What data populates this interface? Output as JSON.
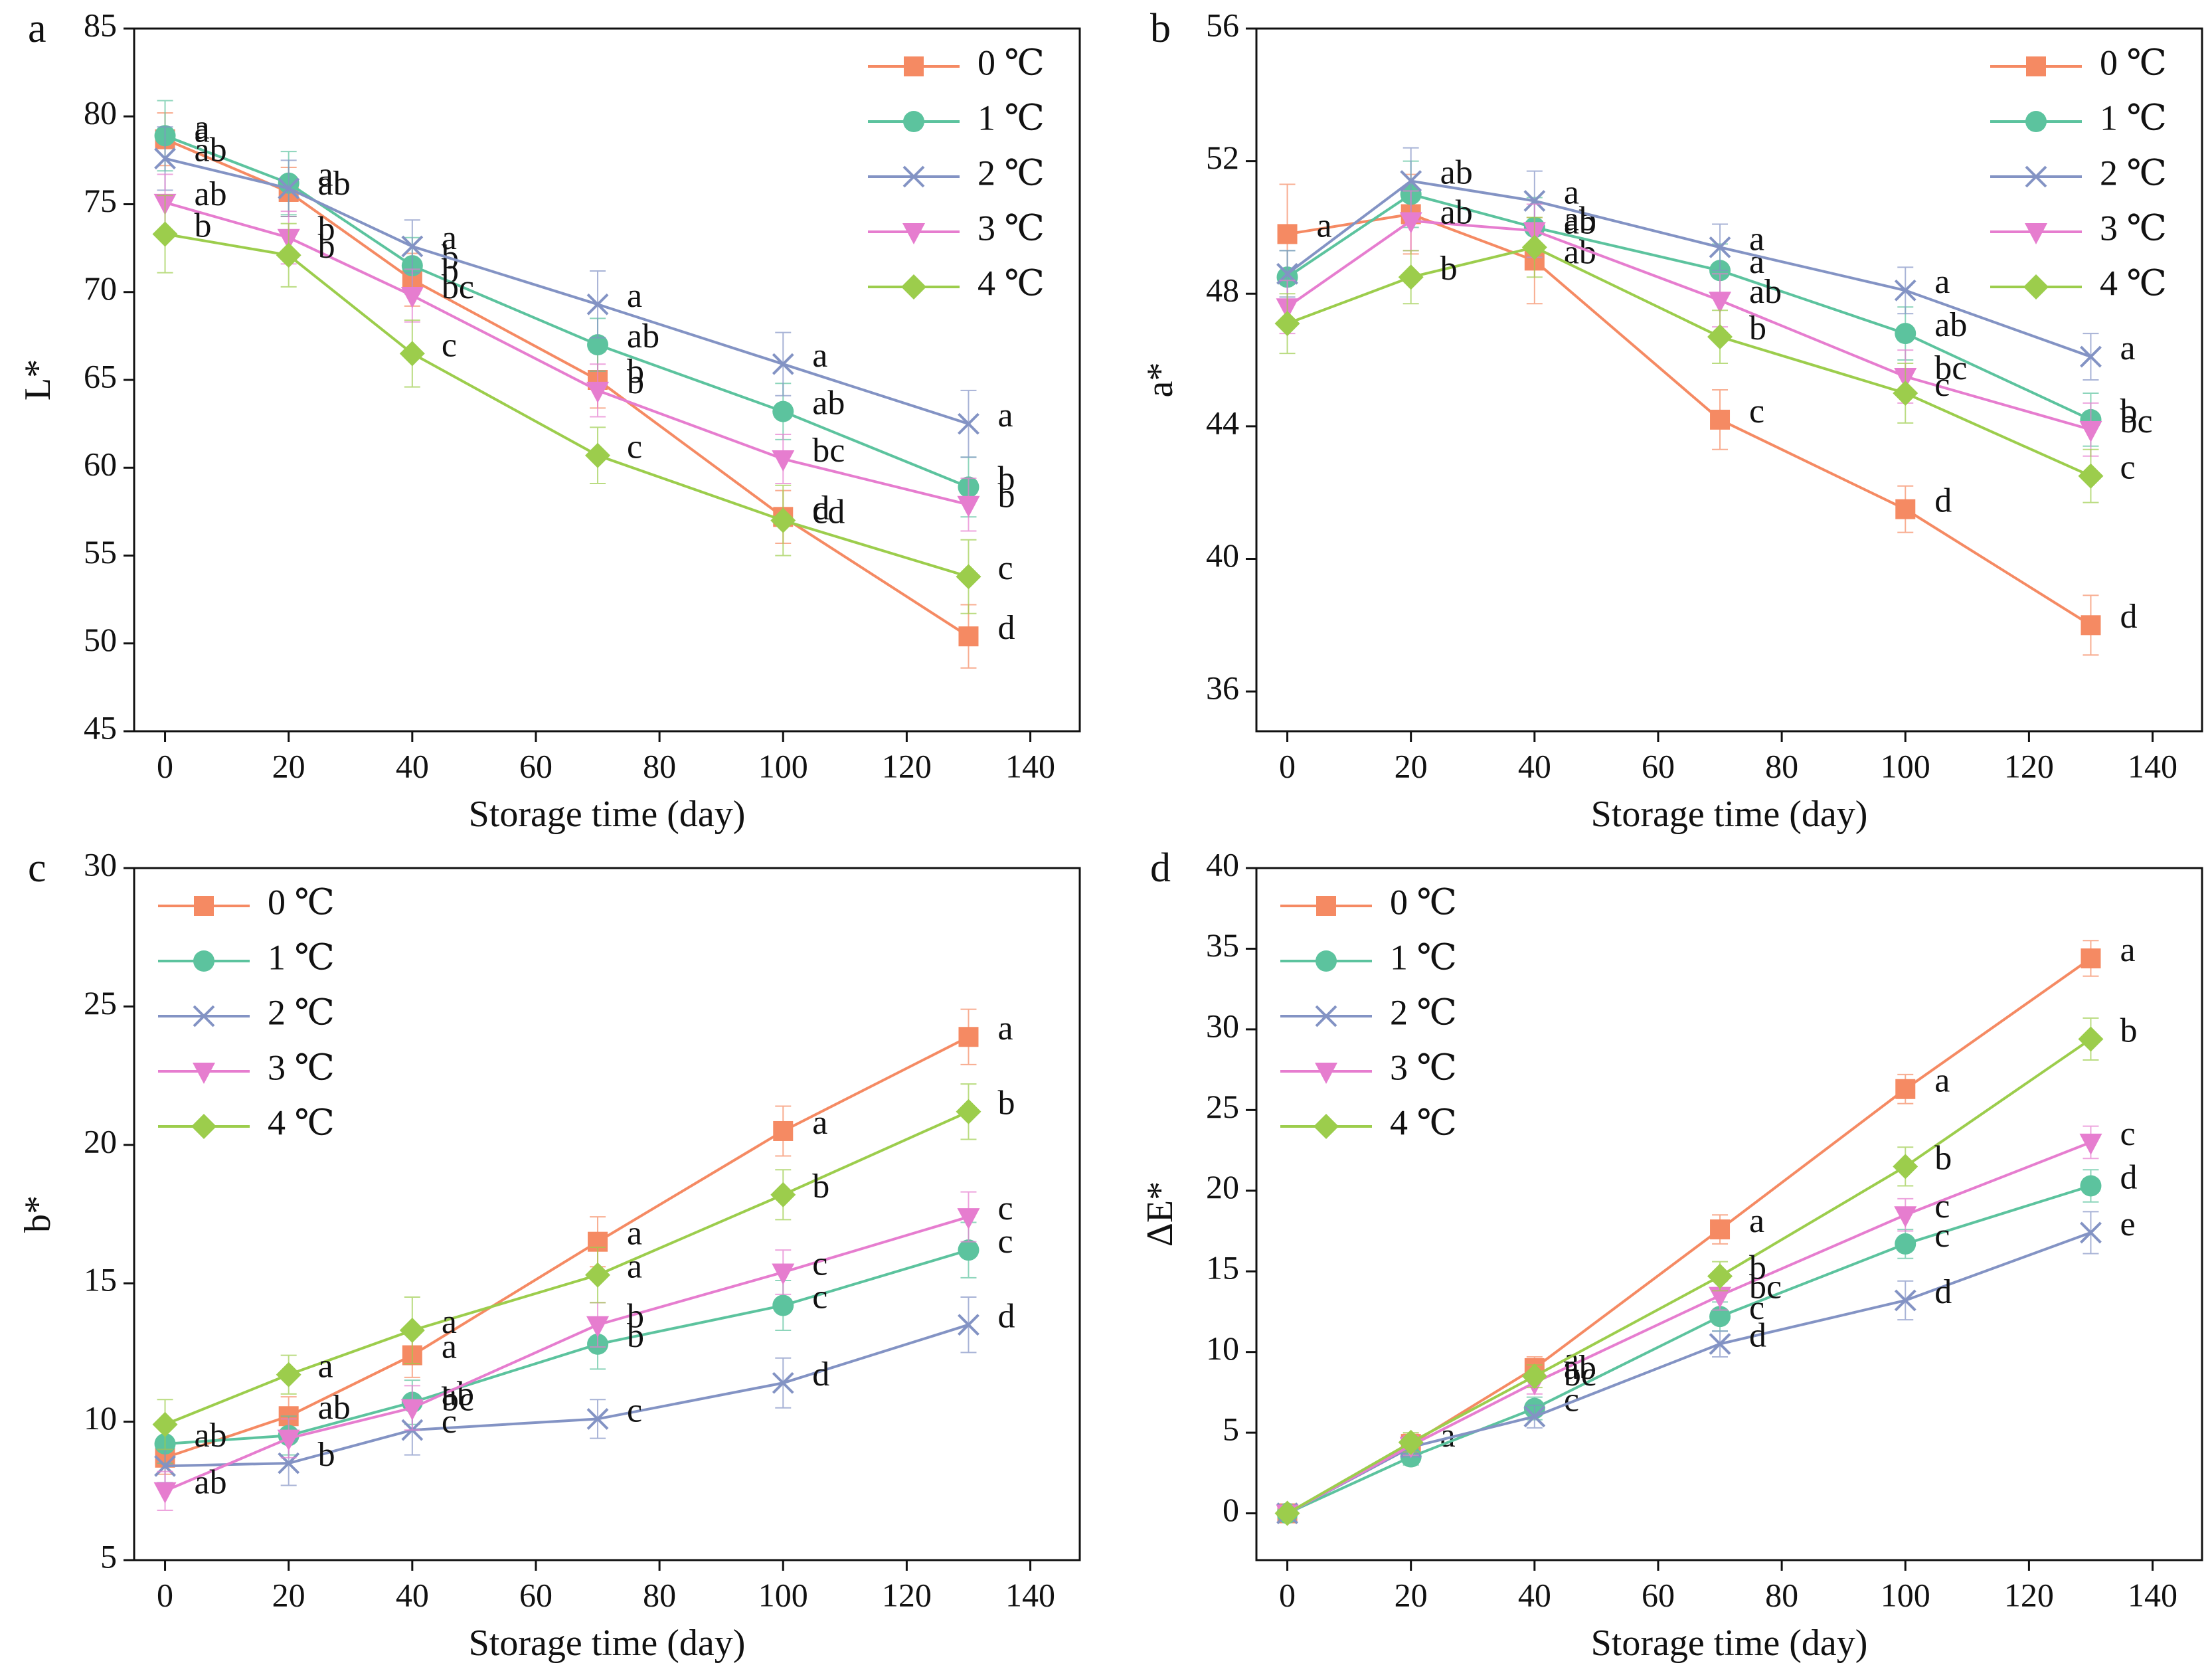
{
  "chart_data": [
    {
      "type": "line",
      "panel_label": "a",
      "ylabel": "L*",
      "xlabel": "Storage time (day)",
      "legend": "upper right",
      "x": [
        0,
        20,
        40,
        70,
        100,
        130
      ],
      "xlim": [
        -5,
        148
      ],
      "xticks": [
        0,
        20,
        40,
        60,
        80,
        100,
        120,
        140
      ],
      "ylim": [
        45,
        85
      ],
      "yticks": [
        45,
        50,
        55,
        60,
        65,
        70,
        75,
        80,
        85
      ],
      "series": [
        {
          "name": "0 ℃",
          "color": "#f58a63",
          "marker": "square",
          "values": [
            78.7,
            75.7,
            70.7,
            65.0,
            57.2,
            50.4
          ],
          "errors": [
            1.5,
            1.4,
            1.5,
            1.6,
            1.5,
            1.8
          ],
          "letters": [
            "a",
            "ab",
            "b",
            "b",
            "d",
            "d"
          ]
        },
        {
          "name": "1 ℃",
          "color": "#5cc39e",
          "marker": "circle",
          "values": [
            78.9,
            76.2,
            71.5,
            67.0,
            63.2,
            58.9
          ],
          "errors": [
            2.0,
            1.8,
            1.6,
            1.5,
            1.6,
            1.7
          ],
          "letters": [
            "a",
            "a",
            "b",
            "ab",
            "ab",
            "b"
          ]
        },
        {
          "name": "2 ℃",
          "color": "#8393c4",
          "marker": "x",
          "values": [
            77.6,
            75.9,
            72.6,
            69.3,
            65.9,
            62.5
          ],
          "errors": [
            1.8,
            1.6,
            1.5,
            1.9,
            1.8,
            1.9
          ],
          "letters": [
            "ab",
            null,
            "a",
            "a",
            "a",
            "a"
          ]
        },
        {
          "name": "3 ℃",
          "color": "#e67dcf",
          "marker": "triangle",
          "values": [
            75.1,
            73.1,
            69.8,
            64.4,
            60.5,
            57.9
          ],
          "errors": [
            1.6,
            1.5,
            1.5,
            1.5,
            1.4,
            1.5
          ],
          "letters": [
            "ab",
            "b",
            "bc",
            "b",
            "bc",
            "b"
          ]
        },
        {
          "name": "4 ℃",
          "color": "#9ccd4c",
          "marker": "diamond",
          "values": [
            73.3,
            72.1,
            66.5,
            60.7,
            57.0,
            53.8
          ],
          "errors": [
            2.2,
            1.8,
            1.9,
            1.6,
            2.0,
            2.1
          ],
          "letters": [
            "b",
            "b",
            "c",
            "c",
            "cd",
            "c"
          ]
        }
      ]
    },
    {
      "type": "line",
      "panel_label": "b",
      "ylabel": "a*",
      "xlabel": "Storage time (day)",
      "legend": "upper right",
      "x": [
        0,
        20,
        40,
        70,
        100,
        130
      ],
      "xlim": [
        -5,
        148
      ],
      "xticks": [
        0,
        20,
        40,
        60,
        80,
        100,
        120,
        140
      ],
      "ylim": [
        34.8,
        56
      ],
      "yticks": [
        36,
        40,
        44,
        48,
        52,
        56
      ],
      "series": [
        {
          "name": "0 ℃",
          "color": "#f58a63",
          "marker": "square",
          "values": [
            49.8,
            50.4,
            49.0,
            44.2,
            41.5,
            38.0
          ],
          "errors": [
            1.5,
            1.2,
            1.3,
            0.9,
            0.7,
            0.9
          ],
          "letters": [
            "a",
            null,
            "ab",
            "c",
            "d",
            "d"
          ]
        },
        {
          "name": "1 ℃",
          "color": "#5cc39e",
          "marker": "circle",
          "values": [
            48.5,
            51.0,
            50.0,
            48.7,
            46.8,
            44.2
          ],
          "errors": [
            0.8,
            1.0,
            0.9,
            0.8,
            0.8,
            0.8
          ],
          "letters": [
            null,
            null,
            "ab",
            "a",
            "ab",
            "b"
          ]
        },
        {
          "name": "2 ℃",
          "color": "#8393c4",
          "marker": "x",
          "values": [
            48.6,
            51.4,
            50.8,
            49.4,
            48.1,
            46.1
          ],
          "errors": [
            0.7,
            1.0,
            0.9,
            0.7,
            0.7,
            0.7
          ],
          "letters": [
            null,
            "ab",
            "a",
            "a",
            "a",
            "a"
          ]
        },
        {
          "name": "3 ℃",
          "color": "#e67dcf",
          "marker": "triangle",
          "values": [
            47.6,
            50.2,
            49.9,
            47.8,
            45.5,
            43.9
          ],
          "errors": [
            0.8,
            0.9,
            0.8,
            0.8,
            0.8,
            0.8
          ],
          "letters": [
            null,
            "ab",
            "ab",
            "ab",
            "bc",
            "bc"
          ]
        },
        {
          "name": "4 ℃",
          "color": "#9ccd4c",
          "marker": "diamond",
          "values": [
            47.1,
            48.5,
            49.4,
            46.7,
            45.0,
            42.5
          ],
          "errors": [
            0.9,
            0.8,
            0.9,
            0.8,
            0.9,
            0.8
          ],
          "letters": [
            null,
            "b",
            null,
            "b",
            "c",
            "c"
          ]
        }
      ]
    },
    {
      "type": "line",
      "panel_label": "c",
      "ylabel": "b*",
      "xlabel": "Storage time (day)",
      "legend": "upper left",
      "x": [
        0,
        20,
        40,
        70,
        100,
        130
      ],
      "xlim": [
        -5,
        148
      ],
      "xticks": [
        0,
        20,
        40,
        60,
        80,
        100,
        120,
        140
      ],
      "ylim": [
        5,
        30
      ],
      "yticks": [
        5,
        10,
        15,
        20,
        25,
        30
      ],
      "series": [
        {
          "name": "0 ℃",
          "color": "#f58a63",
          "marker": "square",
          "values": [
            8.7,
            10.2,
            12.4,
            16.5,
            20.5,
            23.9
          ],
          "errors": [
            0.6,
            0.7,
            0.8,
            0.9,
            0.9,
            1.0
          ],
          "letters": [
            null,
            "ab",
            "a",
            "a",
            "a",
            "a"
          ]
        },
        {
          "name": "1 ℃",
          "color": "#5cc39e",
          "marker": "circle",
          "values": [
            9.2,
            9.5,
            10.7,
            12.8,
            14.2,
            16.2
          ],
          "errors": [
            0.7,
            0.7,
            0.8,
            0.9,
            0.9,
            1.0
          ],
          "letters": [
            "ab",
            null,
            "ab",
            "b",
            "c",
            "c"
          ]
        },
        {
          "name": "2 ℃",
          "color": "#8393c4",
          "marker": "x",
          "values": [
            8.4,
            8.5,
            9.7,
            10.1,
            11.4,
            13.5
          ],
          "errors": [
            0.6,
            0.8,
            0.9,
            0.7,
            0.9,
            1.0
          ],
          "letters": [
            null,
            "b",
            "c",
            "c",
            "d",
            "d"
          ]
        },
        {
          "name": "3 ℃",
          "color": "#e67dcf",
          "marker": "triangle",
          "values": [
            7.5,
            9.4,
            10.5,
            13.5,
            15.4,
            17.4
          ],
          "errors": [
            0.7,
            0.7,
            0.8,
            0.8,
            0.8,
            0.9
          ],
          "letters": [
            "ab",
            null,
            "bc",
            "b",
            "c",
            "c"
          ]
        },
        {
          "name": "4 ℃",
          "color": "#9ccd4c",
          "marker": "diamond",
          "values": [
            9.9,
            11.7,
            13.3,
            15.3,
            18.2,
            21.2
          ],
          "errors": [
            0.9,
            0.7,
            1.2,
            1.0,
            0.9,
            1.0
          ],
          "letters": [
            null,
            "a",
            "a",
            "a",
            "b",
            "b"
          ]
        }
      ]
    },
    {
      "type": "line",
      "panel_label": "d",
      "ylabel": "ΔE*",
      "xlabel": "Storage time (day)",
      "legend": "upper left",
      "x": [
        0,
        20,
        40,
        70,
        100,
        130
      ],
      "xlim": [
        -5,
        148
      ],
      "xticks": [
        0,
        20,
        40,
        60,
        80,
        100,
        120,
        140
      ],
      "ylim": [
        -2.9,
        40
      ],
      "yticks": [
        0,
        5,
        10,
        15,
        20,
        25,
        30,
        35,
        40
      ],
      "series": [
        {
          "name": "0 ℃",
          "color": "#f58a63",
          "marker": "square",
          "values": [
            0,
            4.3,
            9.0,
            17.6,
            26.3,
            34.4
          ],
          "errors": [
            0.2,
            0.6,
            0.7,
            0.9,
            0.9,
            1.1
          ],
          "letters": [
            null,
            "a",
            "a",
            "a",
            "a",
            "a"
          ]
        },
        {
          "name": "1 ℃",
          "color": "#5cc39e",
          "marker": "circle",
          "values": [
            0,
            3.5,
            6.5,
            12.2,
            16.7,
            20.3
          ],
          "errors": [
            0.2,
            0.5,
            0.7,
            0.9,
            0.9,
            1.0
          ],
          "letters": [
            null,
            null,
            "c",
            "c",
            "c",
            "d"
          ]
        },
        {
          "name": "2 ℃",
          "color": "#8393c4",
          "marker": "x",
          "values": [
            0,
            4.1,
            6.0,
            10.5,
            13.2,
            17.4
          ],
          "errors": [
            0.2,
            0.6,
            0.7,
            0.8,
            1.2,
            1.3
          ],
          "letters": [
            null,
            null,
            null,
            "d",
            "d",
            "e"
          ]
        },
        {
          "name": "3 ℃",
          "color": "#e67dcf",
          "marker": "triangle",
          "values": [
            0,
            4.2,
            8.1,
            13.5,
            18.5,
            23.0
          ],
          "errors": [
            0.2,
            0.6,
            0.7,
            0.9,
            1.0,
            1.0
          ],
          "letters": [
            null,
            null,
            "bc",
            "bc",
            "c",
            "c"
          ]
        },
        {
          "name": "4 ℃",
          "color": "#9ccd4c",
          "marker": "diamond",
          "values": [
            0,
            4.4,
            8.5,
            14.7,
            21.5,
            29.4
          ],
          "errors": [
            0.2,
            0.6,
            0.7,
            0.9,
            1.2,
            1.3
          ],
          "letters": [
            null,
            null,
            "ab",
            "b",
            "b",
            "b"
          ]
        }
      ]
    }
  ]
}
